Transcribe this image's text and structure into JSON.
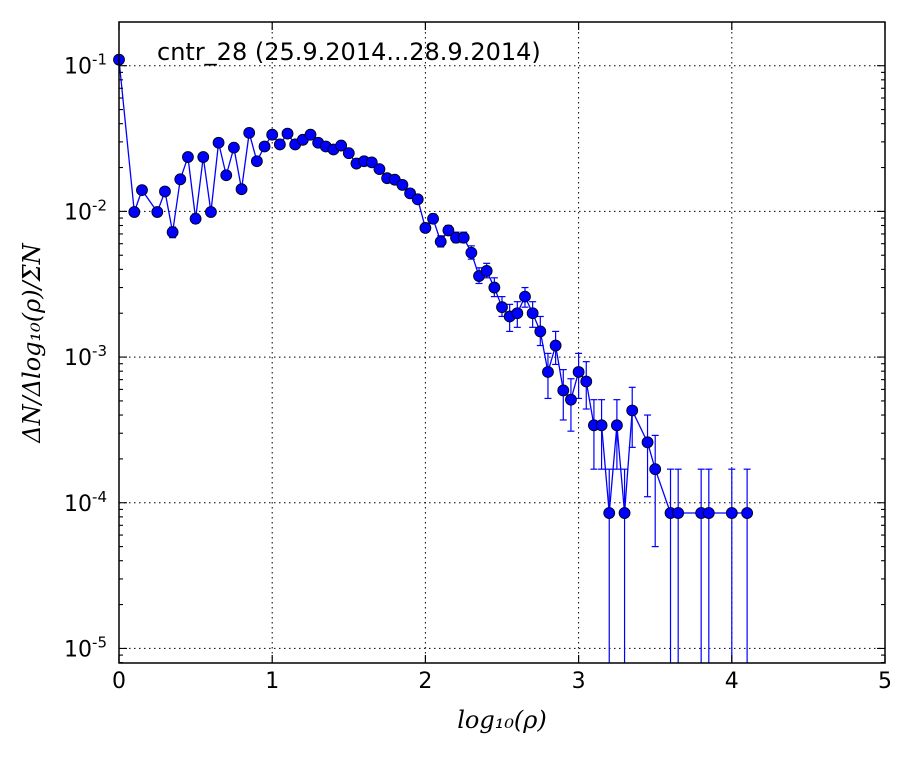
{
  "chart_data": {
    "type": "scatter",
    "title": "cntr_28 (25.9.2014...28.9.2014)",
    "xlabel": "log₁₀(ρ)",
    "ylabel": "ΔN/Δlog₁₀(ρ)/ΣN",
    "xlim": [
      0,
      5
    ],
    "ylim_log10": [
      -5.1,
      -0.7
    ],
    "y_scale": "log",
    "grid": true,
    "x_ticks": [
      0,
      1,
      2,
      3,
      4,
      5
    ],
    "x_tick_labels": [
      "0",
      "1",
      "2",
      "3",
      "4",
      "5"
    ],
    "y_ticks_log10": [
      -1,
      -2,
      -3,
      -4,
      -5
    ],
    "y_tick_labels": [
      {
        "base": "10",
        "exp": "-1"
      },
      {
        "base": "10",
        "exp": "-2"
      },
      {
        "base": "10",
        "exp": "-3"
      },
      {
        "base": "10",
        "exp": "-4"
      },
      {
        "base": "10",
        "exp": "-5"
      }
    ],
    "color": "#0000ff",
    "series": [
      {
        "points": [
          {
            "x": 0.0,
            "y": 0.11,
            "lo": 0.105,
            "hi": 0.115
          },
          {
            "x": 0.1,
            "y": 0.0099,
            "lo": 0.0094,
            "hi": 0.0105
          },
          {
            "x": 0.15,
            "y": 0.014,
            "lo": 0.0134,
            "hi": 0.0147
          },
          {
            "x": 0.25,
            "y": 0.0099,
            "lo": 0.0094,
            "hi": 0.0105
          },
          {
            "x": 0.3,
            "y": 0.0137,
            "lo": 0.0131,
            "hi": 0.0144
          },
          {
            "x": 0.35,
            "y": 0.0072,
            "lo": 0.0066,
            "hi": 0.0078
          },
          {
            "x": 0.4,
            "y": 0.0166,
            "lo": 0.0158,
            "hi": 0.0174
          },
          {
            "x": 0.45,
            "y": 0.0236,
            "lo": 0.0228,
            "hi": 0.0244
          },
          {
            "x": 0.5,
            "y": 0.0089,
            "lo": 0.0083,
            "hi": 0.0096
          },
          {
            "x": 0.55,
            "y": 0.0236,
            "lo": 0.0228,
            "hi": 0.0244
          },
          {
            "x": 0.6,
            "y": 0.0099,
            "lo": 0.0093,
            "hi": 0.0106
          },
          {
            "x": 0.65,
            "y": 0.0296,
            "lo": 0.0288,
            "hi": 0.0305
          },
          {
            "x": 0.7,
            "y": 0.0177,
            "lo": 0.0169,
            "hi": 0.0186
          },
          {
            "x": 0.75,
            "y": 0.0274,
            "lo": 0.0266,
            "hi": 0.0283
          },
          {
            "x": 0.8,
            "y": 0.0142,
            "lo": 0.0135,
            "hi": 0.0149
          },
          {
            "x": 0.85,
            "y": 0.0346,
            "lo": 0.0337,
            "hi": 0.0355
          },
          {
            "x": 0.9,
            "y": 0.0221,
            "lo": 0.0213,
            "hi": 0.023
          },
          {
            "x": 0.95,
            "y": 0.0279,
            "lo": 0.0271,
            "hi": 0.0288
          },
          {
            "x": 1.0,
            "y": 0.0336,
            "lo": 0.0327,
            "hi": 0.0345
          },
          {
            "x": 1.05,
            "y": 0.0288,
            "lo": 0.028,
            "hi": 0.0297
          },
          {
            "x": 1.1,
            "y": 0.0342,
            "lo": 0.0333,
            "hi": 0.0351
          },
          {
            "x": 1.15,
            "y": 0.0288,
            "lo": 0.028,
            "hi": 0.0297
          },
          {
            "x": 1.2,
            "y": 0.031,
            "lo": 0.0302,
            "hi": 0.0319
          },
          {
            "x": 1.25,
            "y": 0.0336,
            "lo": 0.0327,
            "hi": 0.0345
          },
          {
            "x": 1.3,
            "y": 0.0296,
            "lo": 0.0288,
            "hi": 0.0305
          },
          {
            "x": 1.35,
            "y": 0.0279,
            "lo": 0.0271,
            "hi": 0.0288
          },
          {
            "x": 1.4,
            "y": 0.0266,
            "lo": 0.0258,
            "hi": 0.0275
          },
          {
            "x": 1.45,
            "y": 0.0283,
            "lo": 0.0275,
            "hi": 0.0292
          },
          {
            "x": 1.5,
            "y": 0.0251,
            "lo": 0.0243,
            "hi": 0.026
          },
          {
            "x": 1.55,
            "y": 0.0213,
            "lo": 0.0206,
            "hi": 0.0221
          },
          {
            "x": 1.6,
            "y": 0.0221,
            "lo": 0.0213,
            "hi": 0.0229
          },
          {
            "x": 1.65,
            "y": 0.0217,
            "lo": 0.0209,
            "hi": 0.0225
          },
          {
            "x": 1.7,
            "y": 0.0195,
            "lo": 0.0188,
            "hi": 0.0203
          },
          {
            "x": 1.75,
            "y": 0.0169,
            "lo": 0.0162,
            "hi": 0.0177
          },
          {
            "x": 1.8,
            "y": 0.0165,
            "lo": 0.0158,
            "hi": 0.0173
          },
          {
            "x": 1.85,
            "y": 0.0152,
            "lo": 0.0145,
            "hi": 0.0159
          },
          {
            "x": 1.9,
            "y": 0.0133,
            "lo": 0.0126,
            "hi": 0.014
          },
          {
            "x": 1.95,
            "y": 0.0121,
            "lo": 0.0114,
            "hi": 0.0128
          },
          {
            "x": 2.0,
            "y": 0.0077,
            "lo": 0.0072,
            "hi": 0.0083
          },
          {
            "x": 2.05,
            "y": 0.0089,
            "lo": 0.0083,
            "hi": 0.0096
          },
          {
            "x": 2.1,
            "y": 0.0062,
            "lo": 0.0057,
            "hi": 0.0068
          },
          {
            "x": 2.15,
            "y": 0.0074,
            "lo": 0.0069,
            "hi": 0.008
          },
          {
            "x": 2.2,
            "y": 0.0066,
            "lo": 0.0061,
            "hi": 0.0072
          },
          {
            "x": 2.25,
            "y": 0.0066,
            "lo": 0.0061,
            "hi": 0.0072
          },
          {
            "x": 2.3,
            "y": 0.0052,
            "lo": 0.0047,
            "hi": 0.0058
          },
          {
            "x": 2.35,
            "y": 0.0036,
            "lo": 0.0032,
            "hi": 0.0041
          },
          {
            "x": 2.4,
            "y": 0.0039,
            "lo": 0.0035,
            "hi": 0.0044
          },
          {
            "x": 2.45,
            "y": 0.003,
            "lo": 0.0026,
            "hi": 0.0035
          },
          {
            "x": 2.5,
            "y": 0.0022,
            "lo": 0.0019,
            "hi": 0.0026
          },
          {
            "x": 2.55,
            "y": 0.0019,
            "lo": 0.0015,
            "hi": 0.0023
          },
          {
            "x": 2.6,
            "y": 0.002,
            "lo": 0.0016,
            "hi": 0.0024
          },
          {
            "x": 2.65,
            "y": 0.0026,
            "lo": 0.0022,
            "hi": 0.003
          },
          {
            "x": 2.7,
            "y": 0.002,
            "lo": 0.0016,
            "hi": 0.0024
          },
          {
            "x": 2.75,
            "y": 0.0015,
            "lo": 0.0012,
            "hi": 0.0019
          },
          {
            "x": 2.8,
            "y": 0.00079,
            "lo": 0.00052,
            "hi": 0.00106
          },
          {
            "x": 2.85,
            "y": 0.0012,
            "lo": 0.00089,
            "hi": 0.0015
          },
          {
            "x": 2.9,
            "y": 0.00059,
            "lo": 0.00037,
            "hi": 0.00082
          },
          {
            "x": 2.95,
            "y": 0.00051,
            "lo": 0.00031,
            "hi": 0.00071
          },
          {
            "x": 3.0,
            "y": 0.00079,
            "lo": 0.00052,
            "hi": 0.00106
          },
          {
            "x": 3.05,
            "y": 0.00068,
            "lo": 0.00044,
            "hi": 0.00093
          },
          {
            "x": 3.1,
            "y": 0.00034,
            "lo": 0.00017,
            "hi": 0.00051
          },
          {
            "x": 3.15,
            "y": 0.00034,
            "lo": 0.00017,
            "hi": 0.00051
          },
          {
            "x": 3.2,
            "y": 8.5e-05,
            "lo": 1e-06,
            "hi": 0.00017
          },
          {
            "x": 3.25,
            "y": 0.00034,
            "lo": 0.00017,
            "hi": 0.00051
          },
          {
            "x": 3.3,
            "y": 8.5e-05,
            "lo": 1e-06,
            "hi": 0.00017
          },
          {
            "x": 3.35,
            "y": 0.00043,
            "lo": 0.00024,
            "hi": 0.00062
          },
          {
            "x": 3.45,
            "y": 0.00026,
            "lo": 0.00011,
            "hi": 0.0004
          },
          {
            "x": 3.5,
            "y": 0.00017,
            "lo": 5e-05,
            "hi": 0.00029
          },
          {
            "x": 3.6,
            "y": 8.5e-05,
            "lo": 1e-06,
            "hi": 0.00017
          },
          {
            "x": 3.65,
            "y": 8.5e-05,
            "lo": 1e-06,
            "hi": 0.00017
          },
          {
            "x": 3.8,
            "y": 8.5e-05,
            "lo": 1e-06,
            "hi": 0.00017
          },
          {
            "x": 3.85,
            "y": 8.5e-05,
            "lo": 1e-06,
            "hi": 0.00017
          },
          {
            "x": 4.0,
            "y": 8.5e-05,
            "lo": 1e-06,
            "hi": 0.00017
          },
          {
            "x": 4.1,
            "y": 8.5e-05,
            "lo": 1e-06,
            "hi": 0.00017
          }
        ]
      }
    ]
  }
}
